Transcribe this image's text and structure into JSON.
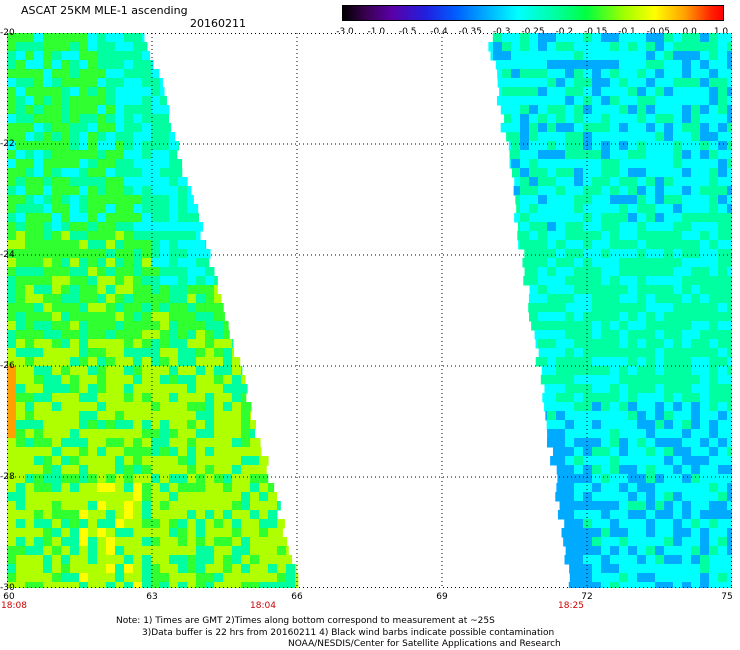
{
  "header": {
    "title": "ASCAT 25KM MLE-1 ascending",
    "date": "20160211"
  },
  "colorbar": {
    "labels": [
      "-3.0",
      "-1.0",
      "-0.5",
      "-0.4",
      "-0.35",
      "-0.3",
      "-0.25",
      "-0.2",
      "-0.15",
      "-0.1",
      "-0.05",
      "0.0",
      "1.0"
    ]
  },
  "axes": {
    "y_labels": [
      "-20",
      "-22",
      "-24",
      "-26",
      "-28",
      "-30"
    ],
    "x_labels": [
      "60",
      "63",
      "66",
      "69",
      "72",
      "75"
    ],
    "lat_range": [
      -30,
      -20
    ],
    "lon_range": [
      60,
      75
    ],
    "grid": true
  },
  "swath_times": [
    "18:08",
    "18:04",
    "18:25"
  ],
  "notes": {
    "line1": "Note: 1) Times are GMT 2)Times along bottom correspond to measurement at ~25S",
    "line2": "3)Data buffer is 22 hrs from 20160211 4) Black wind barbs indicate possible contamination",
    "line3": "NOAA/NESDIS/Center for Satellite Applications and Research"
  },
  "colors": {
    "blue": "#00aaff",
    "cyan": "#00ffff",
    "aqua_green": "#00ffa0",
    "green": "#30ff30",
    "yellow_green": "#b0ff00",
    "yellow": "#ffff00",
    "orange": "#ffa000"
  }
}
